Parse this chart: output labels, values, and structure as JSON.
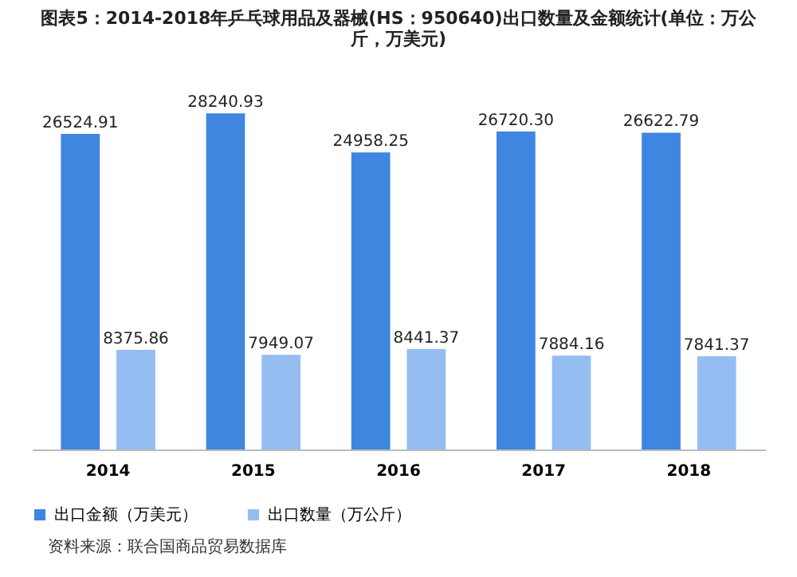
{
  "chart_data": {
    "type": "bar",
    "title": "图表5：2014-2018年乒乓球用品及器械(HS：950640)出口数量及金额统计(单位：万公斤，万美元)",
    "categories": [
      "2014",
      "2015",
      "2016",
      "2017",
      "2018"
    ],
    "series": [
      {
        "name": "出口金额（万美元）",
        "color": "#3f86e0",
        "values": [
          26524.91,
          28240.93,
          24958.25,
          26720.3,
          26622.79
        ],
        "value_labels": [
          "26524.91",
          "28240.93",
          "24958.25",
          "26720.30",
          "26622.79"
        ]
      },
      {
        "name": "出口数量（万公斤）",
        "color": "#94bdf2",
        "values": [
          8375.86,
          7949.07,
          8441.37,
          7884.16,
          7841.37
        ],
        "value_labels": [
          "8375.86",
          "7949.07",
          "8441.37",
          "7884.16",
          "7841.37"
        ]
      }
    ],
    "grid": false,
    "legend": "bottom",
    "annotations": [
      "资料来源：联合国商品贸易数据库"
    ]
  }
}
